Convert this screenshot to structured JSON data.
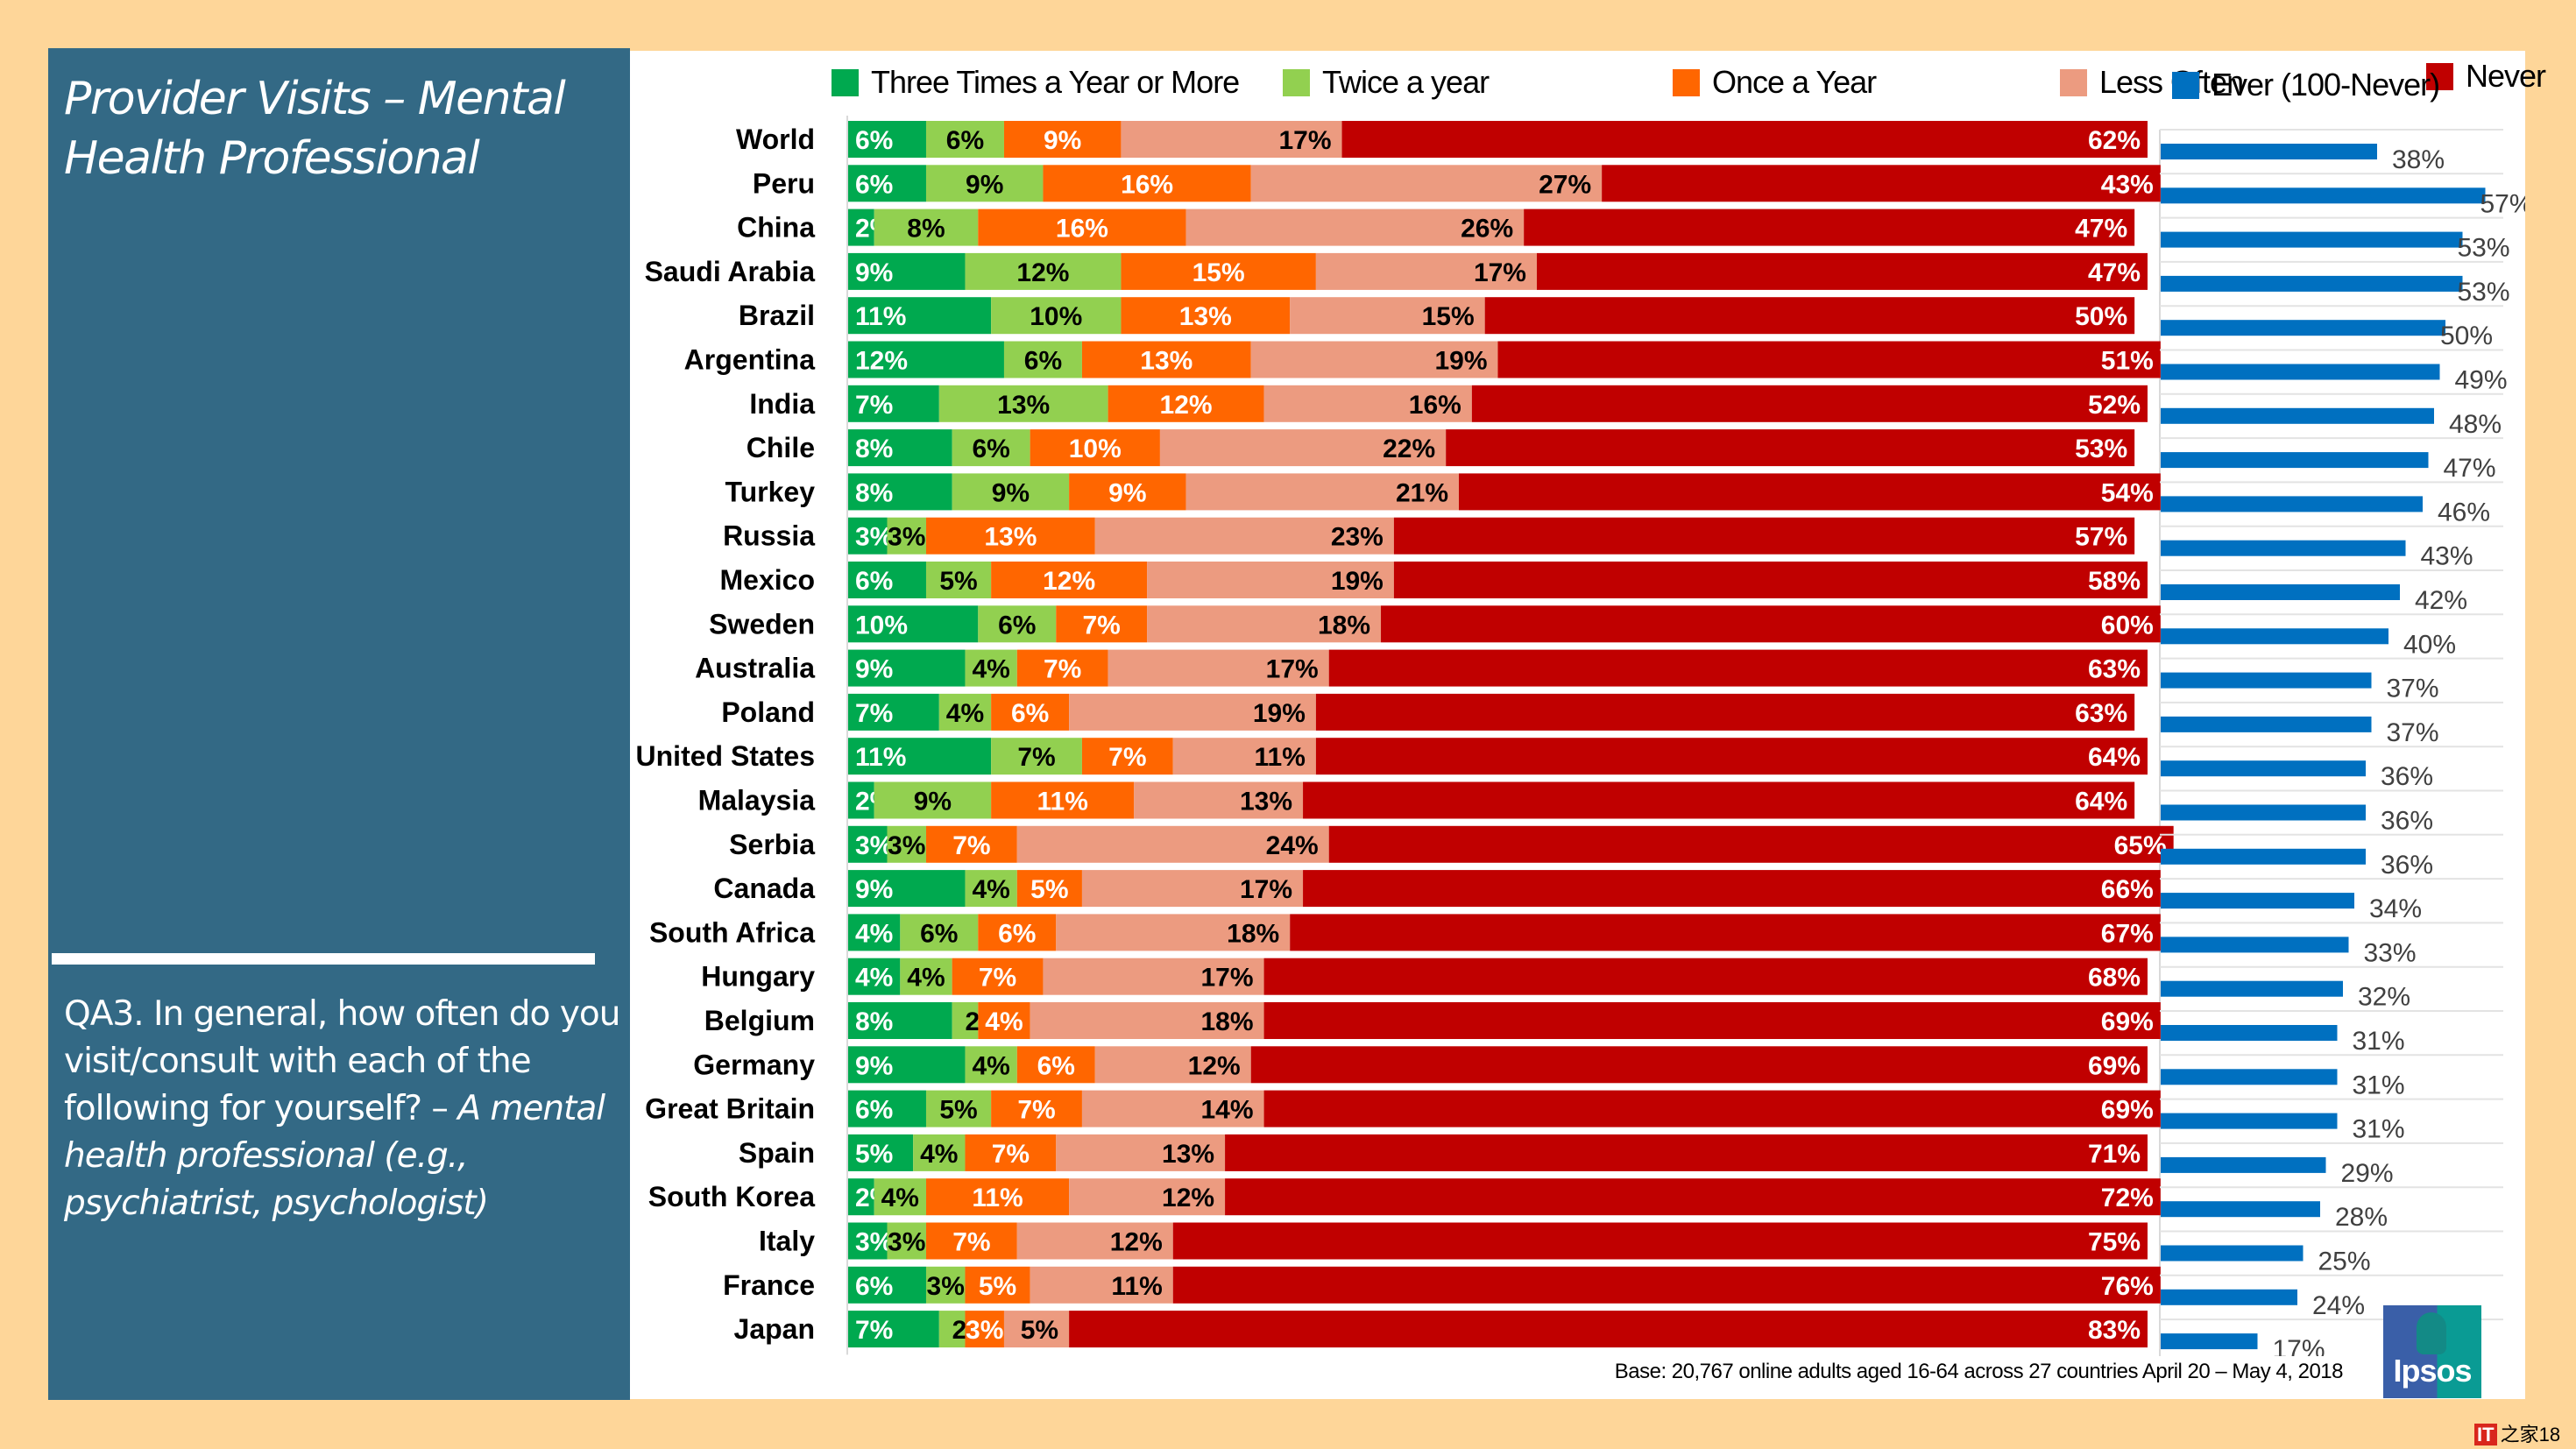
{
  "slide": {
    "title": "Provider Visits – Mental Health Professional",
    "question_plain": "QA3. In general, how often do you visit/consult with each of the following for yourself? – ",
    "question_italic": "A mental health professional (e.g., psychiatrist, psychologist)",
    "base_note": "Base: 20,767 online adults aged 16-64 across 27 countries  April 20 – May 4, 2018",
    "logo_text": "Ipsos",
    "watermark_brand": "IT",
    "watermark_text": "之家",
    "page_number": "18"
  },
  "chart_data": [
    {
      "type": "bar",
      "orientation": "horizontal",
      "stacked": true,
      "title": "",
      "xlabel": "",
      "ylabel": "",
      "xlim": [
        0,
        100
      ],
      "unit": "%",
      "legend_position": "top",
      "categories": [
        "World",
        "Peru",
        "China",
        "Saudi Arabia",
        "Brazil",
        "Argentina",
        "India",
        "Chile",
        "Turkey",
        "Russia",
        "Mexico",
        "Sweden",
        "Australia",
        "Poland",
        "United States",
        "Malaysia",
        "Serbia",
        "Canada",
        "South Africa",
        "Hungary",
        "Belgium",
        "Germany",
        "Great Britain",
        "Spain",
        "South Korea",
        "Italy",
        "France",
        "Japan"
      ],
      "series": [
        {
          "name": "Three Times a Year or More",
          "color": "#00a94f",
          "label_color": "#ffffff",
          "values": [
            6,
            6,
            2,
            9,
            11,
            12,
            7,
            8,
            8,
            3,
            6,
            10,
            9,
            7,
            11,
            2,
            3,
            9,
            4,
            4,
            8,
            9,
            6,
            5,
            2,
            3,
            6,
            7
          ]
        },
        {
          "name": "Twice a year",
          "color": "#92d050",
          "label_color": "#000000",
          "values": [
            6,
            9,
            8,
            12,
            10,
            6,
            13,
            6,
            9,
            3,
            5,
            6,
            4,
            4,
            7,
            9,
            3,
            4,
            6,
            4,
            2,
            4,
            5,
            4,
            4,
            3,
            3,
            2
          ]
        },
        {
          "name": "Once a Year",
          "color": "#ff6600",
          "label_color": "#ffffff",
          "values": [
            9,
            16,
            16,
            15,
            13,
            13,
            12,
            10,
            9,
            13,
            12,
            7,
            7,
            6,
            7,
            11,
            7,
            5,
            6,
            7,
            4,
            6,
            7,
            7,
            11,
            7,
            5,
            3
          ]
        },
        {
          "name": "Less Often",
          "color": "#ec9b80",
          "label_color": "#000000",
          "values": [
            17,
            27,
            26,
            17,
            15,
            19,
            16,
            22,
            21,
            23,
            19,
            18,
            17,
            19,
            11,
            13,
            24,
            17,
            18,
            17,
            18,
            12,
            14,
            13,
            12,
            12,
            11,
            5
          ]
        },
        {
          "name": "Never",
          "color": "#c00000",
          "label_color": "#ffffff",
          "values": [
            62,
            43,
            47,
            47,
            50,
            51,
            52,
            53,
            54,
            57,
            58,
            60,
            63,
            63,
            64,
            64,
            65,
            66,
            67,
            68,
            69,
            69,
            69,
            71,
            72,
            75,
            76,
            83
          ]
        }
      ]
    },
    {
      "type": "bar",
      "orientation": "horizontal",
      "title": "",
      "legend_position": "top",
      "xlim": [
        0,
        60
      ],
      "unit": "%",
      "grid": true,
      "categories": [
        "World",
        "Peru",
        "China",
        "Saudi Arabia",
        "Brazil",
        "Argentina",
        "India",
        "Chile",
        "Turkey",
        "Russia",
        "Mexico",
        "Sweden",
        "Australia",
        "Poland",
        "United States",
        "Malaysia",
        "Serbia",
        "Canada",
        "South Africa",
        "Hungary",
        "Belgium",
        "Germany",
        "Great Britain",
        "Spain",
        "South Korea",
        "Italy",
        "France",
        "Japan"
      ],
      "series": [
        {
          "name": "Ever (100-Never)",
          "color": "#0070c0",
          "values": [
            38,
            57,
            53,
            53,
            50,
            49,
            48,
            47,
            46,
            43,
            42,
            40,
            37,
            37,
            36,
            36,
            36,
            34,
            33,
            32,
            31,
            31,
            31,
            29,
            28,
            25,
            24,
            17
          ]
        }
      ]
    }
  ]
}
